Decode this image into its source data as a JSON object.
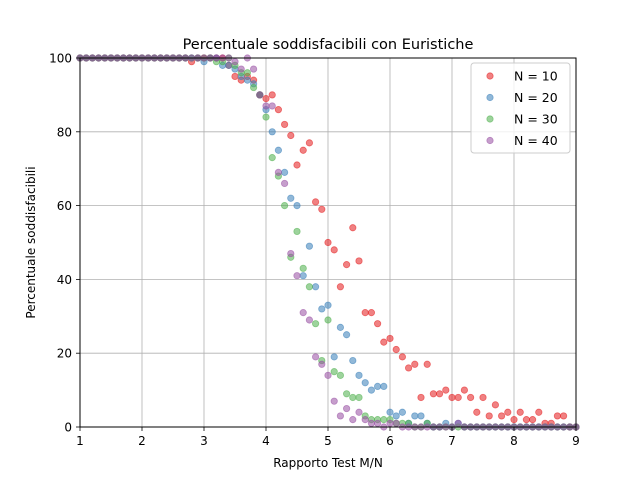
{
  "chart_data": {
    "type": "scatter",
    "title": "Percentuale soddisfacibili con Euristiche",
    "xlabel": "Rapporto Test M/N",
    "ylabel": "Percentuale soddisfacibili",
    "xlim": [
      1,
      9
    ],
    "ylim": [
      0,
      100
    ],
    "xticks": [
      "1",
      "2",
      "3",
      "4",
      "5",
      "6",
      "7",
      "8",
      "9"
    ],
    "yticks": [
      "0",
      "20",
      "40",
      "60",
      "80",
      "100"
    ],
    "grid": true,
    "legend_position": "top-right",
    "series": [
      {
        "name": "N = 10",
        "color": "#e41a1c",
        "points": [
          [
            1.0,
            100
          ],
          [
            1.1,
            100
          ],
          [
            1.2,
            100
          ],
          [
            1.3,
            100
          ],
          [
            1.4,
            100
          ],
          [
            1.5,
            100
          ],
          [
            1.6,
            100
          ],
          [
            1.7,
            100
          ],
          [
            1.8,
            100
          ],
          [
            1.9,
            100
          ],
          [
            2.0,
            100
          ],
          [
            2.1,
            100
          ],
          [
            2.2,
            100
          ],
          [
            2.3,
            100
          ],
          [
            2.4,
            100
          ],
          [
            2.5,
            100
          ],
          [
            2.6,
            100
          ],
          [
            2.7,
            100
          ],
          [
            2.8,
            99
          ],
          [
            2.9,
            100
          ],
          [
            3.0,
            100
          ],
          [
            3.1,
            100
          ],
          [
            3.2,
            100
          ],
          [
            3.3,
            100
          ],
          [
            3.4,
            98
          ],
          [
            3.5,
            95
          ],
          [
            3.6,
            94
          ],
          [
            3.7,
            95
          ],
          [
            3.8,
            94
          ],
          [
            3.9,
            90
          ],
          [
            4.0,
            89
          ],
          [
            4.1,
            90
          ],
          [
            4.2,
            86
          ],
          [
            4.3,
            82
          ],
          [
            4.4,
            79
          ],
          [
            4.5,
            71
          ],
          [
            4.6,
            75
          ],
          [
            4.7,
            77
          ],
          [
            4.8,
            61
          ],
          [
            4.9,
            59
          ],
          [
            5.0,
            50
          ],
          [
            5.1,
            48
          ],
          [
            5.2,
            38
          ],
          [
            5.3,
            44
          ],
          [
            5.4,
            54
          ],
          [
            5.5,
            45
          ],
          [
            5.6,
            31
          ],
          [
            5.7,
            31
          ],
          [
            5.8,
            28
          ],
          [
            5.9,
            23
          ],
          [
            6.0,
            24
          ],
          [
            6.1,
            21
          ],
          [
            6.2,
            19
          ],
          [
            6.3,
            16
          ],
          [
            6.4,
            17
          ],
          [
            6.5,
            8
          ],
          [
            6.6,
            17
          ],
          [
            6.7,
            9
          ],
          [
            6.8,
            9
          ],
          [
            6.9,
            10
          ],
          [
            7.0,
            8
          ],
          [
            7.1,
            8
          ],
          [
            7.2,
            10
          ],
          [
            7.3,
            8
          ],
          [
            7.4,
            4
          ],
          [
            7.5,
            8
          ],
          [
            7.6,
            3
          ],
          [
            7.7,
            6
          ],
          [
            7.8,
            3
          ],
          [
            7.9,
            4
          ],
          [
            8.0,
            2
          ],
          [
            8.1,
            4
          ],
          [
            8.2,
            2
          ],
          [
            8.3,
            2
          ],
          [
            8.4,
            4
          ],
          [
            8.5,
            1
          ],
          [
            8.6,
            1
          ],
          [
            8.7,
            3
          ],
          [
            8.8,
            3
          ],
          [
            8.9,
            0
          ],
          [
            9.0,
            0
          ]
        ]
      },
      {
        "name": "N = 20",
        "color": "#377eb8",
        "points": [
          [
            1.0,
            100
          ],
          [
            1.1,
            100
          ],
          [
            1.2,
            100
          ],
          [
            1.3,
            100
          ],
          [
            1.4,
            100
          ],
          [
            1.5,
            100
          ],
          [
            1.6,
            100
          ],
          [
            1.7,
            100
          ],
          [
            1.8,
            100
          ],
          [
            1.9,
            100
          ],
          [
            2.0,
            100
          ],
          [
            2.1,
            100
          ],
          [
            2.2,
            100
          ],
          [
            2.3,
            100
          ],
          [
            2.4,
            100
          ],
          [
            2.5,
            100
          ],
          [
            2.6,
            100
          ],
          [
            2.7,
            100
          ],
          [
            2.8,
            100
          ],
          [
            2.9,
            100
          ],
          [
            3.0,
            99
          ],
          [
            3.1,
            100
          ],
          [
            3.2,
            100
          ],
          [
            3.3,
            98
          ],
          [
            3.4,
            98
          ],
          [
            3.5,
            97
          ],
          [
            3.6,
            95
          ],
          [
            3.7,
            94
          ],
          [
            3.8,
            93
          ],
          [
            3.9,
            90
          ],
          [
            4.0,
            86
          ],
          [
            4.1,
            80
          ],
          [
            4.2,
            75
          ],
          [
            4.3,
            69
          ],
          [
            4.4,
            62
          ],
          [
            4.5,
            60
          ],
          [
            4.6,
            41
          ],
          [
            4.7,
            49
          ],
          [
            4.8,
            38
          ],
          [
            4.9,
            32
          ],
          [
            5.0,
            33
          ],
          [
            5.1,
            19
          ],
          [
            5.2,
            27
          ],
          [
            5.3,
            25
          ],
          [
            5.4,
            18
          ],
          [
            5.5,
            14
          ],
          [
            5.6,
            12
          ],
          [
            5.7,
            10
          ],
          [
            5.8,
            11
          ],
          [
            5.9,
            11
          ],
          [
            6.0,
            4
          ],
          [
            6.1,
            3
          ],
          [
            6.2,
            4
          ],
          [
            6.3,
            1
          ],
          [
            6.4,
            3
          ],
          [
            6.5,
            3
          ],
          [
            6.6,
            1
          ],
          [
            6.7,
            0
          ],
          [
            6.8,
            0
          ],
          [
            6.9,
            1
          ],
          [
            7.0,
            0
          ],
          [
            7.1,
            1
          ],
          [
            7.2,
            0
          ],
          [
            7.3,
            0
          ],
          [
            7.4,
            0
          ],
          [
            7.5,
            0
          ],
          [
            7.6,
            0
          ],
          [
            7.7,
            0
          ],
          [
            7.8,
            0
          ],
          [
            7.9,
            0
          ],
          [
            8.0,
            0
          ],
          [
            8.1,
            0
          ],
          [
            8.2,
            0
          ],
          [
            8.3,
            0
          ],
          [
            8.4,
            0
          ],
          [
            8.5,
            0
          ],
          [
            8.6,
            0
          ],
          [
            8.7,
            0
          ],
          [
            8.8,
            0
          ],
          [
            8.9,
            0
          ],
          [
            9.0,
            0
          ]
        ]
      },
      {
        "name": "N = 30",
        "color": "#4daf4a",
        "points": [
          [
            1.0,
            100
          ],
          [
            1.1,
            100
          ],
          [
            1.2,
            100
          ],
          [
            1.3,
            100
          ],
          [
            1.4,
            100
          ],
          [
            1.5,
            100
          ],
          [
            1.6,
            100
          ],
          [
            1.7,
            100
          ],
          [
            1.8,
            100
          ],
          [
            1.9,
            100
          ],
          [
            2.0,
            100
          ],
          [
            2.1,
            100
          ],
          [
            2.2,
            100
          ],
          [
            2.3,
            100
          ],
          [
            2.4,
            100
          ],
          [
            2.5,
            100
          ],
          [
            2.6,
            100
          ],
          [
            2.7,
            100
          ],
          [
            2.8,
            100
          ],
          [
            2.9,
            100
          ],
          [
            3.0,
            100
          ],
          [
            3.1,
            100
          ],
          [
            3.2,
            99
          ],
          [
            3.3,
            99
          ],
          [
            3.4,
            100
          ],
          [
            3.5,
            98
          ],
          [
            3.6,
            96
          ],
          [
            3.7,
            96
          ],
          [
            3.8,
            92
          ],
          [
            3.9,
            90
          ],
          [
            4.0,
            84
          ],
          [
            4.1,
            73
          ],
          [
            4.2,
            68
          ],
          [
            4.3,
            60
          ],
          [
            4.4,
            46
          ],
          [
            4.5,
            53
          ],
          [
            4.6,
            43
          ],
          [
            4.7,
            38
          ],
          [
            4.8,
            28
          ],
          [
            4.9,
            18
          ],
          [
            5.0,
            29
          ],
          [
            5.1,
            15
          ],
          [
            5.2,
            14
          ],
          [
            5.3,
            9
          ],
          [
            5.4,
            8
          ],
          [
            5.5,
            8
          ],
          [
            5.6,
            3
          ],
          [
            5.7,
            2
          ],
          [
            5.8,
            2
          ],
          [
            5.9,
            2
          ],
          [
            6.0,
            2
          ],
          [
            6.1,
            1
          ],
          [
            6.2,
            1
          ],
          [
            6.3,
            1
          ],
          [
            6.4,
            0
          ],
          [
            6.5,
            0
          ],
          [
            6.6,
            1
          ],
          [
            6.7,
            0
          ],
          [
            6.8,
            0
          ],
          [
            6.9,
            0
          ],
          [
            7.0,
            0
          ],
          [
            7.1,
            0
          ],
          [
            7.2,
            0
          ],
          [
            7.3,
            0
          ],
          [
            7.4,
            0
          ],
          [
            7.5,
            0
          ],
          [
            7.6,
            0
          ],
          [
            7.7,
            0
          ],
          [
            7.8,
            0
          ],
          [
            7.9,
            0
          ],
          [
            8.0,
            0
          ],
          [
            8.1,
            0
          ],
          [
            8.2,
            0
          ],
          [
            8.3,
            0
          ],
          [
            8.4,
            0
          ],
          [
            8.5,
            0
          ],
          [
            8.6,
            0
          ],
          [
            8.7,
            0
          ],
          [
            8.8,
            0
          ],
          [
            8.9,
            0
          ],
          [
            9.0,
            0
          ]
        ]
      },
      {
        "name": "N = 40",
        "color": "#984ea3",
        "points": [
          [
            1.0,
            100
          ],
          [
            1.1,
            100
          ],
          [
            1.2,
            100
          ],
          [
            1.3,
            100
          ],
          [
            1.4,
            100
          ],
          [
            1.5,
            100
          ],
          [
            1.6,
            100
          ],
          [
            1.7,
            100
          ],
          [
            1.8,
            100
          ],
          [
            1.9,
            100
          ],
          [
            2.0,
            100
          ],
          [
            2.1,
            100
          ],
          [
            2.2,
            100
          ],
          [
            2.3,
            100
          ],
          [
            2.4,
            100
          ],
          [
            2.5,
            100
          ],
          [
            2.6,
            100
          ],
          [
            2.7,
            100
          ],
          [
            2.8,
            100
          ],
          [
            2.9,
            100
          ],
          [
            3.0,
            100
          ],
          [
            3.1,
            100
          ],
          [
            3.2,
            100
          ],
          [
            3.3,
            100
          ],
          [
            3.4,
            100
          ],
          [
            3.5,
            99
          ],
          [
            3.6,
            97
          ],
          [
            3.7,
            100
          ],
          [
            3.8,
            97
          ],
          [
            3.9,
            90
          ],
          [
            4.0,
            87
          ],
          [
            4.1,
            87
          ],
          [
            4.2,
            69
          ],
          [
            4.3,
            66
          ],
          [
            4.4,
            47
          ],
          [
            4.5,
            41
          ],
          [
            4.6,
            31
          ],
          [
            4.7,
            29
          ],
          [
            4.8,
            19
          ],
          [
            4.9,
            17
          ],
          [
            5.0,
            14
          ],
          [
            5.1,
            7
          ],
          [
            5.2,
            3
          ],
          [
            5.3,
            5
          ],
          [
            5.4,
            2
          ],
          [
            5.5,
            4
          ],
          [
            5.6,
            2
          ],
          [
            5.7,
            1
          ],
          [
            5.8,
            1
          ],
          [
            5.9,
            0
          ],
          [
            6.0,
            1
          ],
          [
            6.1,
            1
          ],
          [
            6.2,
            0
          ],
          [
            6.3,
            0
          ],
          [
            6.4,
            0
          ],
          [
            6.5,
            0
          ],
          [
            6.6,
            0
          ],
          [
            6.7,
            0
          ],
          [
            6.8,
            0
          ],
          [
            6.9,
            0
          ],
          [
            7.0,
            0
          ],
          [
            7.1,
            1
          ],
          [
            7.2,
            0
          ],
          [
            7.3,
            0
          ],
          [
            7.4,
            0
          ],
          [
            7.5,
            0
          ],
          [
            7.6,
            0
          ],
          [
            7.7,
            0
          ],
          [
            7.8,
            0
          ],
          [
            7.9,
            0
          ],
          [
            8.0,
            0
          ],
          [
            8.1,
            0
          ],
          [
            8.2,
            0
          ],
          [
            8.3,
            0
          ],
          [
            8.4,
            0
          ],
          [
            8.5,
            0
          ],
          [
            8.6,
            0
          ],
          [
            8.7,
            0
          ],
          [
            8.8,
            0
          ],
          [
            8.9,
            0
          ],
          [
            9.0,
            0
          ]
        ]
      }
    ]
  }
}
